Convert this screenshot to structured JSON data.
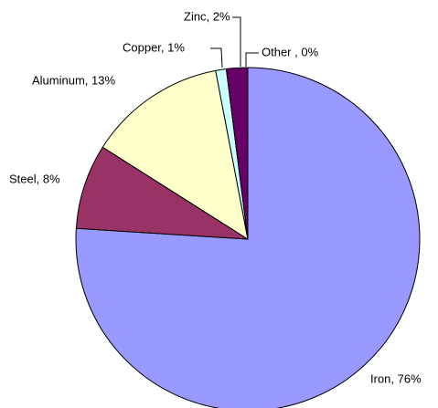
{
  "chart_data": {
    "type": "pie",
    "categories": [
      "Iron",
      "Steel",
      "Aluminum",
      "Copper",
      "Zinc",
      "Other "
    ],
    "values": [
      76,
      8,
      13,
      1,
      2,
      0
    ],
    "value_labels": [
      "Iron, 76%",
      "Steel, 8%",
      "Aluminum, 13%",
      "Copper, 1%",
      "Zinc, 2%",
      "Other , 0%"
    ],
    "colors": [
      "#9999ff",
      "#993366",
      "#ffffcc",
      "#ccffff",
      "#660066",
      "#ffffff"
    ]
  }
}
